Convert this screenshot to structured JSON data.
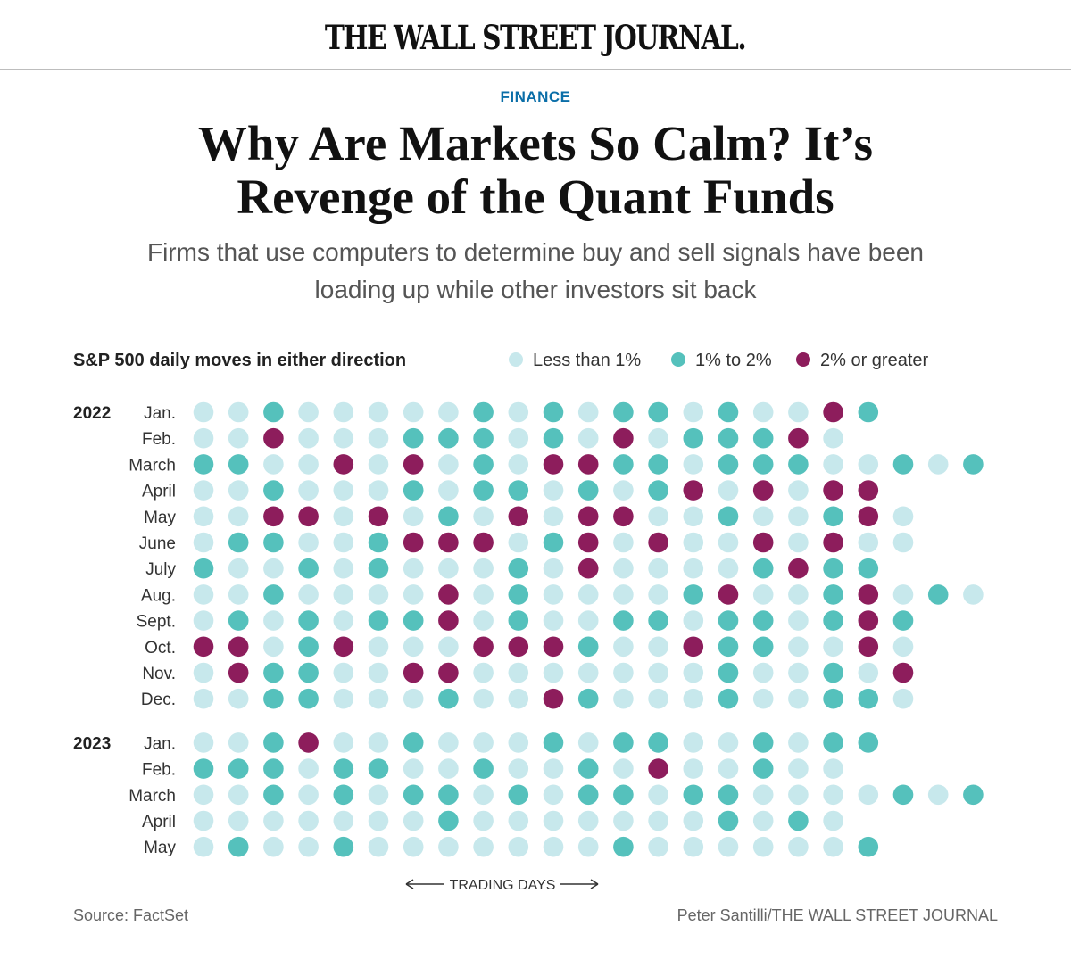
{
  "masthead": {
    "title": "THE WALL STREET JOURNAL."
  },
  "article": {
    "section": "FINANCE",
    "headline_line1": "Why Are Markets So Calm? It’s",
    "headline_line2": "Revenge of the Quant Funds",
    "dek_line1": "Firms that use computers to determine buy and sell signals have been",
    "dek_line2": "loading up while other investors sit back"
  },
  "colors": {
    "less_than_1": "#c7e8ec",
    "one_to_two": "#55c1bc",
    "two_or_greater": "#8d1d5c",
    "text": "#222222",
    "muted": "#666666"
  },
  "chart_data": {
    "type": "table",
    "title": "S&P 500 daily moves in either direction",
    "legend": [
      {
        "key": 0,
        "label": "Less than 1%"
      },
      {
        "key": 1,
        "label": "1% to 2%"
      },
      {
        "key": 2,
        "label": "2% or greater"
      }
    ],
    "xlabel": "TRADING DAYS",
    "source": "Source: FactSet",
    "credit": "Peter Santilli/THE WALL STREET JOURNAL",
    "years": [
      {
        "year": "2022",
        "months": [
          {
            "month": "Jan.",
            "days": [
              0,
              0,
              1,
              0,
              0,
              0,
              0,
              0,
              1,
              0,
              1,
              0,
              1,
              1,
              0,
              1,
              0,
              0,
              2,
              1
            ]
          },
          {
            "month": "Feb.",
            "days": [
              0,
              0,
              2,
              0,
              0,
              0,
              1,
              1,
              1,
              0,
              1,
              0,
              2,
              0,
              1,
              1,
              1,
              2,
              0
            ]
          },
          {
            "month": "March",
            "days": [
              1,
              1,
              0,
              0,
              2,
              0,
              2,
              0,
              1,
              0,
              2,
              2,
              1,
              1,
              0,
              1,
              1,
              1,
              0,
              0,
              1,
              0,
              1
            ]
          },
          {
            "month": "April",
            "days": [
              0,
              0,
              1,
              0,
              0,
              0,
              1,
              0,
              1,
              1,
              0,
              1,
              0,
              1,
              2,
              0,
              2,
              0,
              2,
              2
            ]
          },
          {
            "month": "May",
            "days": [
              0,
              0,
              2,
              2,
              0,
              2,
              0,
              1,
              0,
              2,
              0,
              2,
              2,
              0,
              0,
              1,
              0,
              0,
              1,
              2,
              0
            ]
          },
          {
            "month": "June",
            "days": [
              0,
              1,
              1,
              0,
              0,
              1,
              2,
              2,
              2,
              0,
              1,
              2,
              0,
              2,
              0,
              0,
              2,
              0,
              2,
              0,
              0
            ]
          },
          {
            "month": "July",
            "days": [
              1,
              0,
              0,
              1,
              0,
              1,
              0,
              0,
              0,
              1,
              0,
              2,
              0,
              0,
              0,
              0,
              1,
              2,
              1,
              1
            ]
          },
          {
            "month": "Aug.",
            "days": [
              0,
              0,
              1,
              0,
              0,
              0,
              0,
              2,
              0,
              1,
              0,
              0,
              0,
              0,
              1,
              2,
              0,
              0,
              1,
              2,
              0,
              1,
              0
            ]
          },
          {
            "month": "Sept.",
            "days": [
              0,
              1,
              0,
              1,
              0,
              1,
              1,
              2,
              0,
              1,
              0,
              0,
              1,
              1,
              0,
              1,
              1,
              0,
              1,
              2,
              1
            ]
          },
          {
            "month": "Oct.",
            "days": [
              2,
              2,
              0,
              1,
              2,
              0,
              0,
              0,
              2,
              2,
              2,
              1,
              0,
              0,
              2,
              1,
              1,
              0,
              0,
              2,
              0
            ]
          },
          {
            "month": "Nov.",
            "days": [
              0,
              2,
              1,
              1,
              0,
              0,
              2,
              2,
              0,
              0,
              0,
              0,
              0,
              0,
              0,
              1,
              0,
              0,
              1,
              0,
              2
            ]
          },
          {
            "month": "Dec.",
            "days": [
              0,
              0,
              1,
              1,
              0,
              0,
              0,
              1,
              0,
              0,
              2,
              1,
              0,
              0,
              0,
              1,
              0,
              0,
              1,
              1,
              0
            ]
          }
        ]
      },
      {
        "year": "2023",
        "months": [
          {
            "month": "Jan.",
            "days": [
              0,
              0,
              1,
              2,
              0,
              0,
              1,
              0,
              0,
              0,
              1,
              0,
              1,
              1,
              0,
              0,
              1,
              0,
              1,
              1
            ]
          },
          {
            "month": "Feb.",
            "days": [
              1,
              1,
              1,
              0,
              1,
              1,
              0,
              0,
              1,
              0,
              0,
              1,
              0,
              2,
              0,
              0,
              1,
              0,
              0
            ]
          },
          {
            "month": "March",
            "days": [
              0,
              0,
              1,
              0,
              1,
              0,
              1,
              1,
              0,
              1,
              0,
              1,
              1,
              0,
              1,
              1,
              0,
              0,
              0,
              0,
              1,
              0,
              1
            ]
          },
          {
            "month": "April",
            "days": [
              0,
              0,
              0,
              0,
              0,
              0,
              0,
              1,
              0,
              0,
              0,
              0,
              0,
              0,
              0,
              1,
              0,
              1,
              0
            ]
          },
          {
            "month": "May",
            "days": [
              0,
              1,
              0,
              0,
              1,
              0,
              0,
              0,
              0,
              0,
              0,
              0,
              1,
              0,
              0,
              0,
              0,
              0,
              0,
              1
            ]
          }
        ]
      }
    ]
  }
}
